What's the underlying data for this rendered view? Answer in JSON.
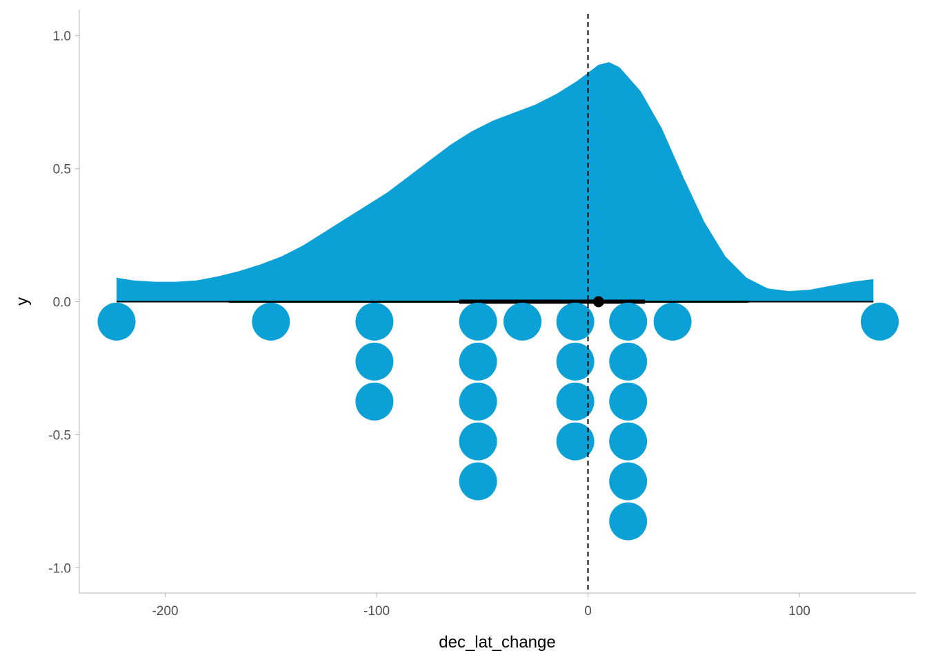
{
  "chart_data": {
    "type": "dotplot-with-density",
    "title": "",
    "xlabel": "dec_lat_change",
    "ylabel": "y",
    "xlim": [
      -240,
      155
    ],
    "ylim": [
      -1.1,
      1.1
    ],
    "x_ticks": [
      -200,
      -100,
      0,
      100
    ],
    "x_tick_labels": [
      "-200",
      "-100",
      "0",
      "100"
    ],
    "y_ticks": [
      -1.0,
      -0.5,
      0.0,
      0.5,
      1.0
    ],
    "y_tick_labels": [
      "-1.0",
      "-0.5",
      "0.0",
      "0.5",
      "1.0"
    ],
    "grid": false,
    "colors": {
      "fill": "#0ba1d6",
      "interval": "#000000",
      "reference_line": "#000000",
      "axis": "#b3b3b3"
    },
    "reference_line": {
      "x": 0,
      "style": "dashed"
    },
    "density": {
      "x": [
        -223,
        -215,
        -205,
        -195,
        -185,
        -175,
        -165,
        -155,
        -145,
        -135,
        -125,
        -115,
        -105,
        -95,
        -85,
        -75,
        -65,
        -55,
        -45,
        -35,
        -25,
        -15,
        -5,
        0,
        5,
        10,
        15,
        25,
        35,
        45,
        55,
        65,
        75,
        85,
        95,
        105,
        115,
        125,
        135
      ],
      "y": [
        0.09,
        0.08,
        0.075,
        0.075,
        0.08,
        0.095,
        0.115,
        0.14,
        0.17,
        0.21,
        0.26,
        0.31,
        0.36,
        0.41,
        0.47,
        0.53,
        0.59,
        0.64,
        0.68,
        0.71,
        0.74,
        0.78,
        0.83,
        0.86,
        0.89,
        0.9,
        0.88,
        0.79,
        0.65,
        0.47,
        0.3,
        0.17,
        0.09,
        0.05,
        0.04,
        0.045,
        0.06,
        0.075,
        0.085
      ]
    },
    "intervals": [
      {
        "level": "outer",
        "lo": -223,
        "hi": 135
      },
      {
        "level": "66%",
        "lo": -170,
        "hi": 76
      },
      {
        "level": "50%",
        "lo": -61,
        "hi": 27
      }
    ],
    "point_estimate": {
      "x": 5,
      "y": 0
    },
    "dots": [
      {
        "x": -223,
        "count": 1
      },
      {
        "x": -150,
        "count": 1
      },
      {
        "x": -101,
        "count": 3
      },
      {
        "x": -52,
        "count": 5
      },
      {
        "x": -31,
        "count": 1
      },
      {
        "x": -6,
        "count": 4
      },
      {
        "x": 19,
        "count": 6
      },
      {
        "x": 40,
        "count": 1
      },
      {
        "x": 138,
        "count": 1
      }
    ]
  }
}
